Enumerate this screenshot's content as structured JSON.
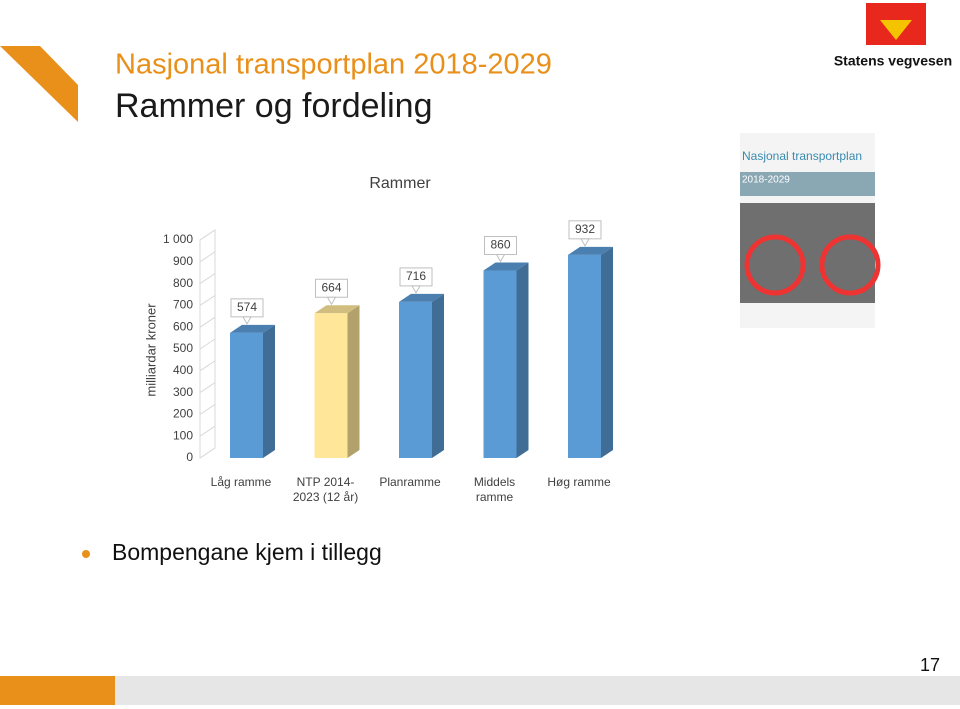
{
  "slide": {
    "title": "Nasjonal transportplan 2018-2029",
    "subtitle": "Rammer og fordeling",
    "bullet": "Bompengane kjem i tillegg",
    "page_number": "17",
    "logo_text": "Statens vegvesen",
    "cover_title": "Nasjonal transportplan",
    "cover_years": "2018-2029"
  },
  "chart_data": {
    "type": "bar3d",
    "title": "Rammer",
    "y_label": "milliardar kroner",
    "categories": [
      "Låg ramme",
      "NTP 2014-2023 (12 år)",
      "Planramme",
      "Middels ramme",
      "Høg ramme"
    ],
    "values": [
      574,
      664,
      716,
      860,
      932
    ],
    "colors": [
      "#5b9bd5",
      "#ffe699",
      "#5b9bd5",
      "#5b9bd5",
      "#5b9bd5"
    ],
    "ylim": [
      0,
      1000
    ],
    "yticks": [
      0,
      100,
      200,
      300,
      400,
      500,
      600,
      700,
      800,
      900,
      {
        "value": 1000,
        "label": "1 000"
      }
    ]
  }
}
